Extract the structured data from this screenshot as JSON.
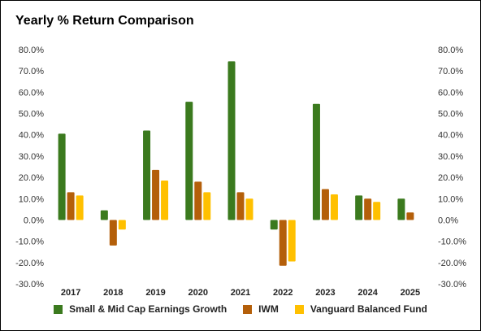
{
  "chart_data": {
    "type": "bar",
    "title": "Yearly % Return Comparison",
    "categories": [
      "2017",
      "2018",
      "2019",
      "2020",
      "2021",
      "2022",
      "2023",
      "2024",
      "2025"
    ],
    "series": [
      {
        "name": "Small & Mid Cap Earnings Growth",
        "color": "#3b7a1e",
        "values": [
          40.5,
          4.5,
          42.0,
          55.5,
          74.5,
          -4.5,
          54.5,
          11.5,
          10.0
        ]
      },
      {
        "name": "IWM",
        "color": "#b45f0a",
        "values": [
          13.0,
          -12.0,
          23.5,
          18.0,
          13.0,
          -21.5,
          14.5,
          10.0,
          3.5
        ]
      },
      {
        "name": "Vanguard Balanced Fund",
        "color": "#ffc000",
        "values": [
          11.5,
          -4.5,
          18.5,
          13.0,
          10.0,
          -19.5,
          12.0,
          8.5,
          null
        ]
      }
    ],
    "yticks": [
      "-30.0%",
      "-20.0%",
      "-10.0%",
      "0.0%",
      "10.0%",
      "20.0%",
      "30.0%",
      "40.0%",
      "50.0%",
      "60.0%",
      "70.0%",
      "80.0%"
    ],
    "ylim": [
      -30,
      80
    ],
    "grid": false,
    "legend_position": "bottom"
  }
}
